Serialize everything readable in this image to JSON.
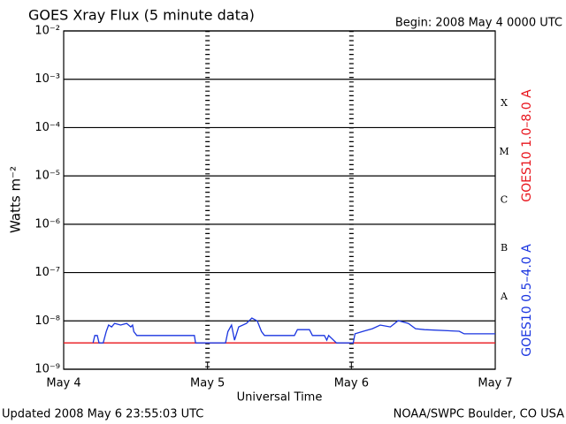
{
  "chart_data": {
    "type": "line",
    "title": "GOES Xray Flux (5 minute data)",
    "begin": "Begin:  2008 May 4 0000 UTC",
    "ylabel": "Watts m⁻²",
    "xlabel": "Universal Time",
    "updated": "Updated 2008 May  6 23:55:03 UTC",
    "source": "NOAA/SWPC Boulder, CO USA",
    "yscale": "log",
    "grid": true,
    "xlim": [
      0,
      72
    ],
    "xticks": [
      {
        "value": 0,
        "label": "May 4"
      },
      {
        "value": 24,
        "label": "May 5"
      },
      {
        "value": 48,
        "label": "May 6"
      },
      {
        "value": 72,
        "label": "May 7"
      }
    ],
    "ylim": [
      1e-09,
      0.01
    ],
    "yticks": [
      {
        "value": 1e-09,
        "label": "10⁻⁹"
      },
      {
        "value": 1e-08,
        "label": "10⁻⁸"
      },
      {
        "value": 1e-07,
        "label": "10⁻⁷"
      },
      {
        "value": 1e-06,
        "label": "10⁻⁶"
      },
      {
        "value": 1e-05,
        "label": "10⁻⁵"
      },
      {
        "value": 0.0001,
        "label": "10⁻⁴"
      },
      {
        "value": 0.001,
        "label": "10⁻³"
      },
      {
        "value": 0.01,
        "label": "10⁻²"
      }
    ],
    "flare_classes": [
      "A",
      "B",
      "C",
      "M",
      "X"
    ],
    "series": [
      {
        "name": "GOES10 1.0–8.0 A",
        "color": "#e8141c",
        "x": [
          0,
          72
        ],
        "values": [
          3.5e-09,
          3.5e-09
        ]
      },
      {
        "name": "GOES10 0.5–4.0 A",
        "color": "#1a35e0",
        "x": [
          4.9,
          5.2,
          5.6,
          5.9,
          6.6,
          7.1,
          7.5,
          8.0,
          8.5,
          9.5,
          10.5,
          11.2,
          11.5,
          11.7,
          12.2,
          21.8,
          22.0,
          24.0,
          27.0,
          27.4,
          28.0,
          28.5,
          29.2,
          30.5,
          31.4,
          32.3,
          33.0,
          33.5,
          38.5,
          39.0,
          41.0,
          41.5,
          43.5,
          43.9,
          44.2,
          45.5,
          48.3,
          48.6,
          50.0,
          51.5,
          52.8,
          54.5,
          55.8,
          57.5,
          58.7,
          60.2,
          66.0,
          66.8,
          72
        ],
        "values": [
          3.5e-09,
          5e-09,
          5e-09,
          3.5e-09,
          3.5e-09,
          6e-09,
          8.2e-09,
          7.5e-09,
          8.9e-09,
          8.2e-09,
          8.9e-09,
          7.5e-09,
          8.2e-09,
          6e-09,
          5e-09,
          5e-09,
          3.5e-09,
          3.5e-09,
          3.5e-09,
          6e-09,
          8.2e-09,
          4e-09,
          7.5e-09,
          8.9e-09,
          1.15e-08,
          1e-08,
          6e-09,
          5e-09,
          5e-09,
          6.6e-09,
          6.6e-09,
          5e-09,
          5e-09,
          4e-09,
          5e-09,
          3.5e-09,
          3.5e-09,
          5.4e-09,
          6.1e-09,
          6.9e-09,
          8.2e-09,
          7.5e-09,
          1.01e-08,
          8.9e-09,
          6.9e-09,
          6.6e-09,
          6.1e-09,
          5.4e-09,
          5.4e-09
        ]
      }
    ]
  }
}
